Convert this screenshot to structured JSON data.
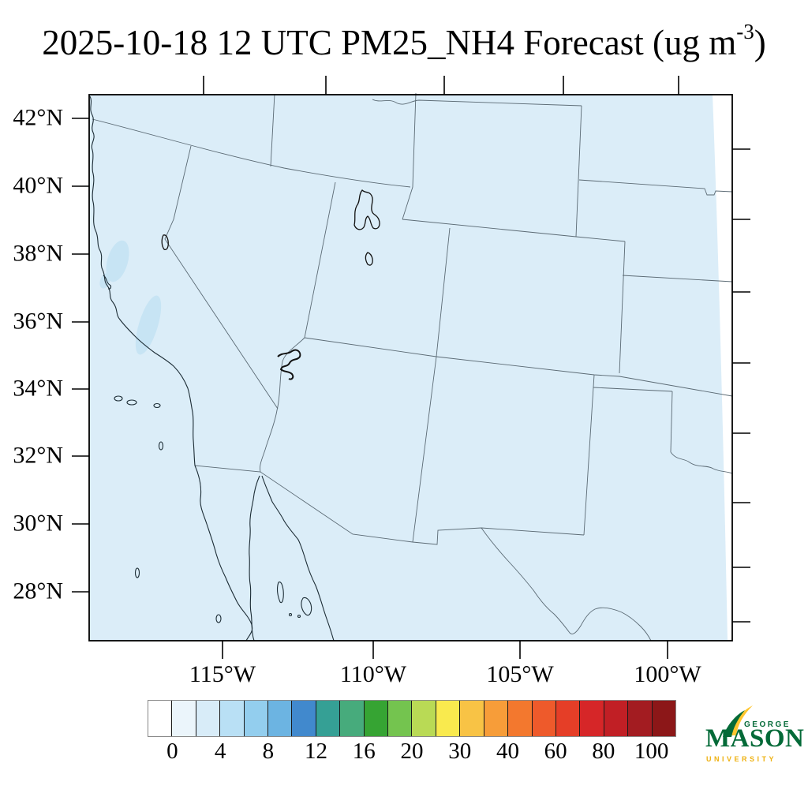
{
  "title": {
    "prefix": "2025-10-18 12 UTC PM25_NH4 Forecast (ug m",
    "superscript": "-3",
    "suffix": ")"
  },
  "axes": {
    "lat_labels": [
      "42°N",
      "40°N",
      "38°N",
      "36°N",
      "34°N",
      "32°N",
      "30°N",
      "28°N"
    ],
    "lon_labels": [
      "115°W",
      "110°W",
      "105°W",
      "100°W"
    ]
  },
  "map": {
    "background_color": "#dbedf8",
    "low_value_patch_color": "#c7e4f4",
    "state_border_color": "#5b6a74",
    "coast_color": "#1c2c35"
  },
  "colorbar": {
    "labels": [
      "0",
      "4",
      "8",
      "12",
      "16",
      "20",
      "30",
      "40",
      "60",
      "80",
      "100"
    ],
    "colors": [
      "#ffffff",
      "#ebf5fb",
      "#d8ecf8",
      "#b9e0f5",
      "#93ceee",
      "#6cb4e2",
      "#4189cd",
      "#35a095",
      "#47ab7c",
      "#36a433",
      "#74c44f",
      "#b9da55",
      "#f9ea4e",
      "#f8c345",
      "#f79d39",
      "#f3782e",
      "#ee5a2b",
      "#e53e27",
      "#d62628",
      "#c11f25",
      "#a31c21",
      "#8c1718"
    ]
  },
  "logo": {
    "george": "GEORGE",
    "mason": "MASON",
    "university": "UNIVERSITY",
    "green": "#046a38",
    "gold": "#eeb111",
    "flame_gold": "#ffc62f"
  }
}
